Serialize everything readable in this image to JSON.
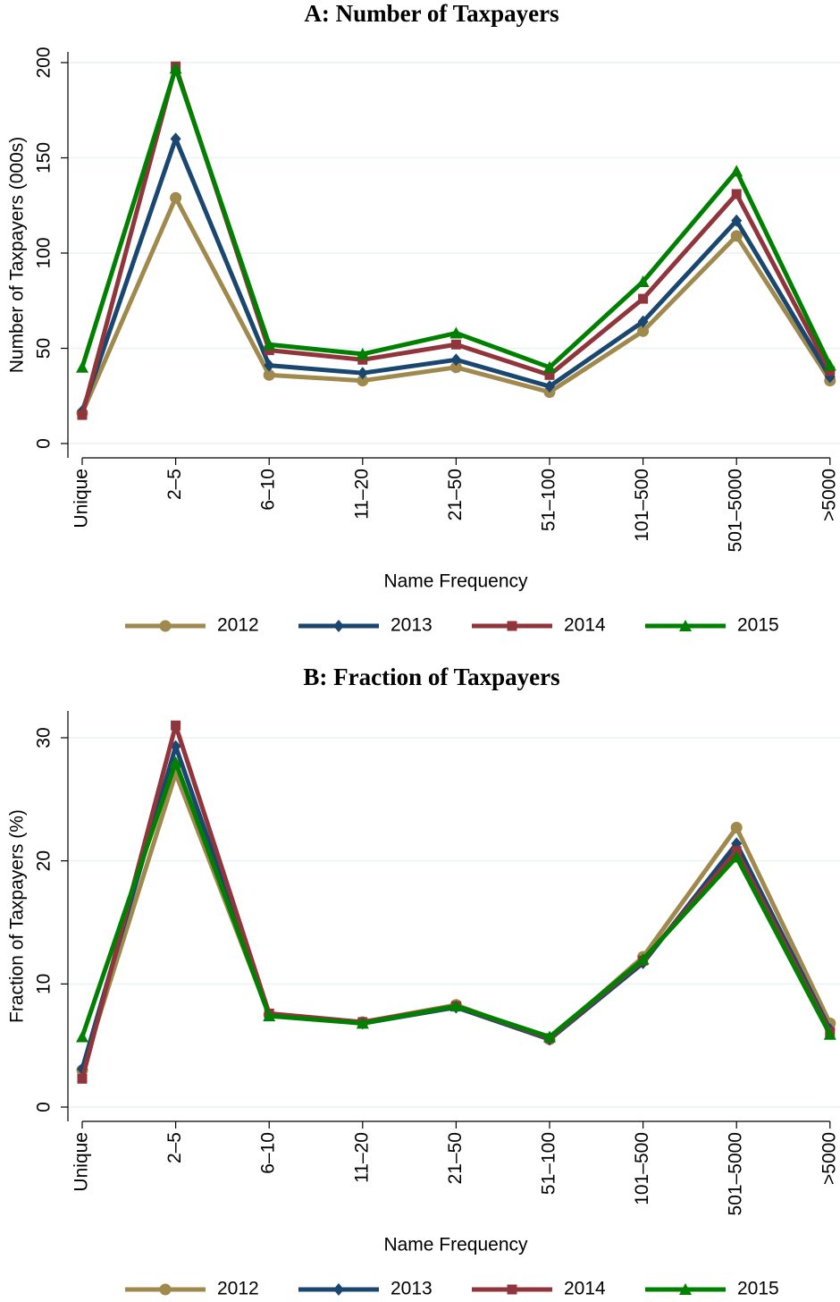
{
  "chart_data": [
    {
      "type": "line",
      "title": "A: Number of Taxpayers",
      "xlabel": "Name Frequency",
      "ylabel": "Number of Taxpayers (000s)",
      "categories": [
        "Unique",
        "2–5",
        "6–10",
        "11–20",
        "21–50",
        "51–100",
        "101–500",
        "501–5000",
        ">5000"
      ],
      "ylim": [
        0,
        200
      ],
      "yticks": [
        0,
        50,
        100,
        150,
        200
      ],
      "grid": true,
      "series": [
        {
          "name": "2012",
          "color": "#a0894d",
          "marker": "circle",
          "values": [
            16,
            129,
            36,
            33,
            40,
            27,
            59,
            109,
            33
          ]
        },
        {
          "name": "2013",
          "color": "#1a476f",
          "marker": "diamond",
          "values": [
            17,
            160,
            41,
            37,
            44,
            30,
            64,
            117,
            35
          ]
        },
        {
          "name": "2014",
          "color": "#90353b",
          "marker": "square",
          "values": [
            15,
            198,
            49,
            44,
            52,
            36,
            76,
            131,
            38
          ]
        },
        {
          "name": "2015",
          "color": "#008000",
          "marker": "triangle",
          "values": [
            40,
            197,
            52,
            47,
            58,
            40,
            85,
            143,
            41
          ]
        }
      ]
    },
    {
      "type": "line",
      "title": "B: Fraction of Taxpayers",
      "xlabel": "Name Frequency",
      "ylabel": "Fraction of Taxpayers (%)",
      "categories": [
        "Unique",
        "2–5",
        "6–10",
        "11–20",
        "21–50",
        "51–100",
        "101–500",
        "501–5000",
        ">5000"
      ],
      "ylim": [
        0,
        30
      ],
      "yticks": [
        0,
        10,
        20,
        30
      ],
      "grid": true,
      "series": [
        {
          "name": "2012",
          "color": "#a0894d",
          "marker": "circle",
          "values": [
            3.0,
            27.1,
            7.5,
            6.9,
            8.3,
            5.5,
            12.2,
            22.7,
            6.8
          ]
        },
        {
          "name": "2013",
          "color": "#1a476f",
          "marker": "diamond",
          "values": [
            3.1,
            29.3,
            7.5,
            6.8,
            8.1,
            5.5,
            11.7,
            21.4,
            6.3
          ]
        },
        {
          "name": "2014",
          "color": "#90353b",
          "marker": "square",
          "values": [
            2.3,
            31.0,
            7.6,
            6.9,
            8.2,
            5.6,
            11.9,
            20.8,
            6.1
          ]
        },
        {
          "name": "2015",
          "color": "#008000",
          "marker": "triangle",
          "values": [
            5.7,
            28.0,
            7.4,
            6.8,
            8.2,
            5.7,
            12.0,
            20.3,
            5.9
          ]
        }
      ]
    }
  ]
}
